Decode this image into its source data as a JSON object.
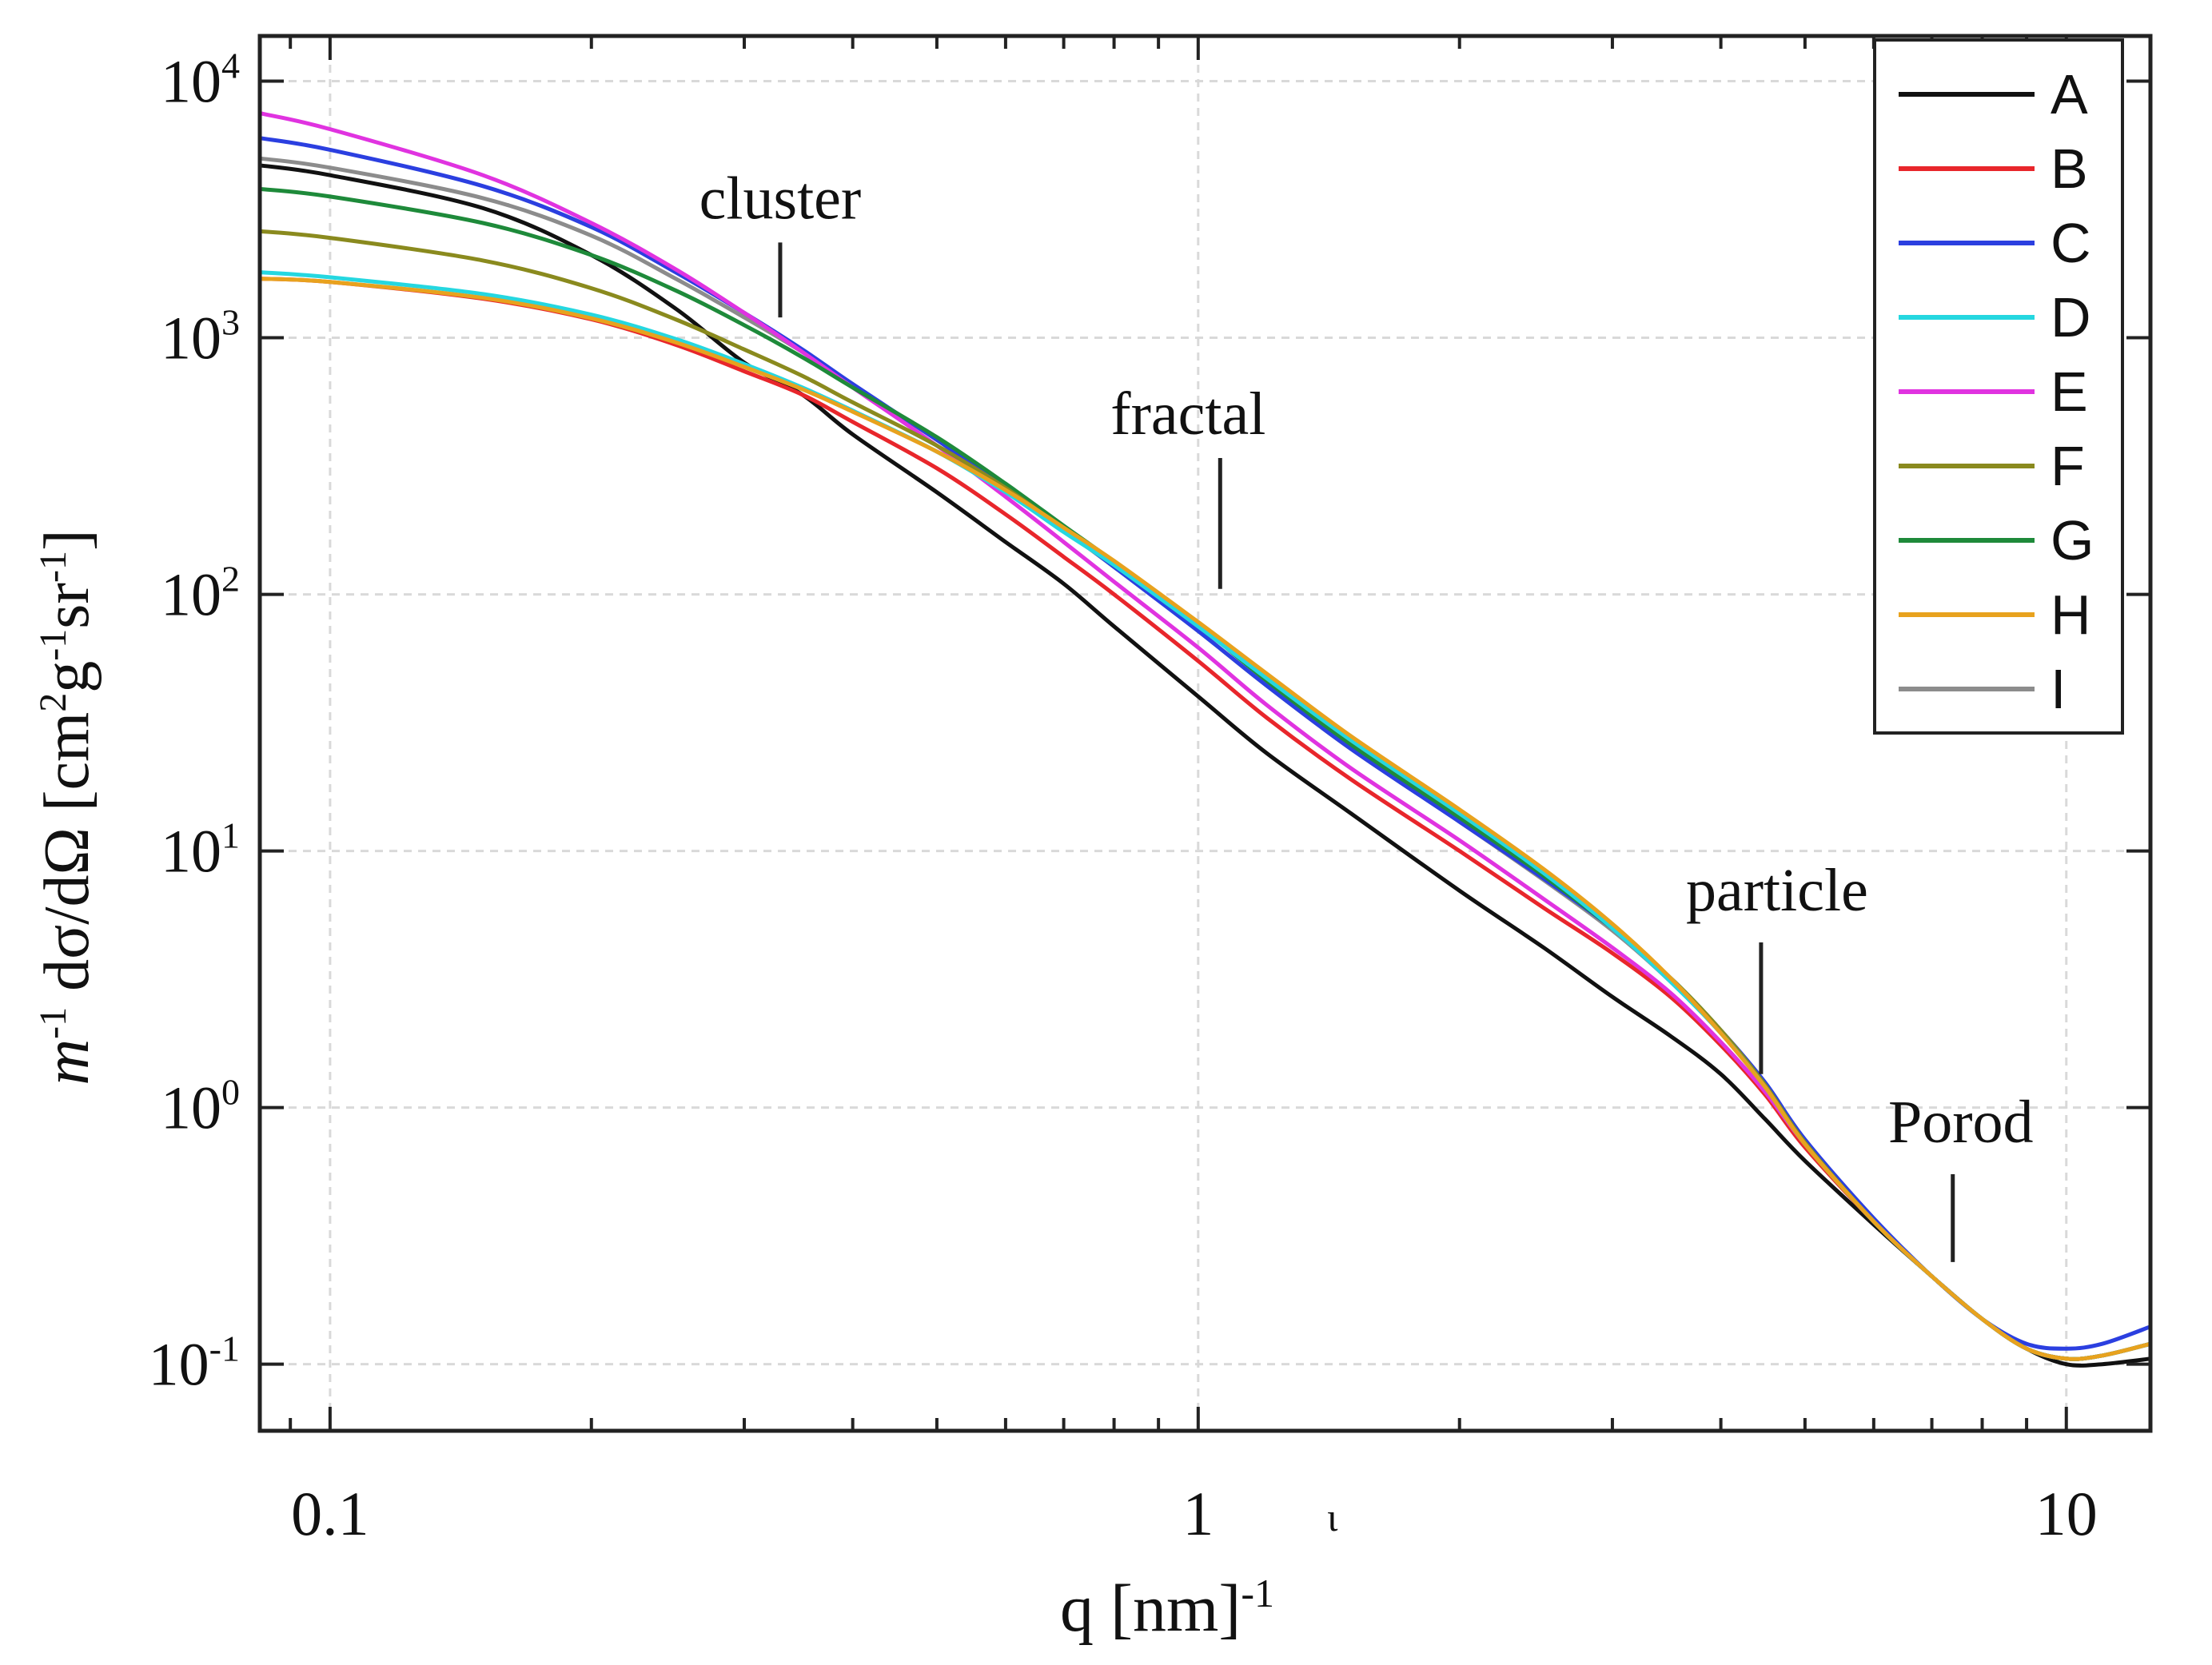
{
  "chart_data": {
    "type": "line",
    "title": "",
    "xlabel": "q [nm]",
    "xlabel_exp": "-1",
    "ylabel": {
      "m": "m",
      "m_exp": "-1",
      "body": " dσ/dΩ [cm",
      "cm_exp": "2",
      "g": "g",
      "g_exp": "-1",
      "sr": "sr",
      "sr_exp": "-1",
      "close": "]"
    },
    "xscale": "log",
    "yscale": "log",
    "xlim": [
      0.083,
      12.5
    ],
    "ylim": [
      0.055,
      15000
    ],
    "grid": true,
    "legend_position": "top-right",
    "x_ticks": [
      {
        "value": 0.1,
        "label": "0.1"
      },
      {
        "value": 1,
        "label": "1"
      },
      {
        "value": 10,
        "label": "10"
      }
    ],
    "y_ticks": [
      {
        "value": 0.1,
        "base": "10",
        "exp": "-1"
      },
      {
        "value": 1,
        "base": "10",
        "exp": "0"
      },
      {
        "value": 10,
        "base": "10",
        "exp": "1"
      },
      {
        "value": 100,
        "base": "10",
        "exp": "2"
      },
      {
        "value": 1000,
        "base": "10",
        "exp": "3"
      },
      {
        "value": 10000,
        "base": "10",
        "exp": "4"
      }
    ],
    "stray_mark": "ι",
    "annotations": [
      {
        "text": "cluster",
        "x": 0.33,
        "y_top": 1200,
        "y_bottom": 2350
      },
      {
        "text": "fractal",
        "x": 1.06,
        "y_top": 105,
        "y_bottom": 340
      },
      {
        "text": "particle",
        "x": 4.45,
        "y_top": 1.35,
        "y_bottom": 4.4
      },
      {
        "text": "Porod",
        "x": 7.4,
        "y_top": 0.25,
        "y_bottom": 0.55
      }
    ],
    "series": [
      {
        "name": "A",
        "color": "#111111",
        "x": [
          0.083,
          0.1,
          0.15,
          0.2,
          0.25,
          0.3,
          0.35,
          0.4,
          0.5,
          0.6,
          0.7,
          0.8,
          1.0,
          1.2,
          1.5,
          2.0,
          2.5,
          3.0,
          3.5,
          4.0,
          4.5,
          5.0,
          6.0,
          7.0,
          8.0,
          9.0,
          10.0,
          11.0,
          12.5
        ],
        "y": [
          4700,
          4300,
          3200,
          2100,
          1300,
          800,
          600,
          420,
          250,
          160,
          110,
          75,
          40,
          24,
          14,
          7,
          4.2,
          2.7,
          1.9,
          1.35,
          0.9,
          0.62,
          0.35,
          0.22,
          0.15,
          0.115,
          0.1,
          0.1,
          0.105
        ]
      },
      {
        "name": "B",
        "color": "#e8262b",
        "x": [
          0.083,
          0.1,
          0.15,
          0.2,
          0.25,
          0.3,
          0.35,
          0.4,
          0.5,
          0.6,
          0.7,
          0.8,
          1.0,
          1.2,
          1.5,
          2.0,
          2.5,
          3.0,
          3.5,
          4.0,
          4.5,
          5.0,
          6.0,
          7.0,
          8.0,
          9.0,
          10.0,
          11.0,
          12.5
        ],
        "y": [
          1700,
          1650,
          1420,
          1180,
          940,
          740,
          600,
          470,
          310,
          205,
          140,
          100,
          55,
          33,
          19,
          10,
          6.0,
          4.0,
          2.7,
          1.75,
          1.12,
          0.7,
          0.36,
          0.22,
          0.15,
          0.115,
          0.105,
          0.108,
          0.12
        ]
      },
      {
        "name": "C",
        "color": "#2b3fe0",
        "x": [
          0.083,
          0.1,
          0.15,
          0.2,
          0.25,
          0.3,
          0.35,
          0.4,
          0.5,
          0.6,
          0.7,
          0.8,
          1.0,
          1.2,
          1.5,
          2.0,
          2.5,
          3.0,
          3.5,
          4.0,
          4.5,
          5.0,
          6.0,
          7.0,
          8.0,
          9.0,
          10.0,
          11.0,
          12.5
        ],
        "y": [
          6000,
          5400,
          3900,
          2700,
          1800,
          1250,
          900,
          660,
          400,
          260,
          180,
          128,
          72,
          44,
          25,
          13,
          7.8,
          5.0,
          3.2,
          2.0,
          1.25,
          0.75,
          0.37,
          0.22,
          0.15,
          0.12,
          0.115,
          0.12,
          0.14
        ]
      },
      {
        "name": "D",
        "color": "#25d7e0",
        "x": [
          0.083,
          0.1,
          0.15,
          0.2,
          0.25,
          0.3,
          0.35,
          0.4,
          0.5,
          0.6,
          0.7,
          0.8,
          1.0,
          1.2,
          1.5,
          2.0,
          2.5,
          3.0,
          3.5,
          4.0,
          4.5,
          5.0,
          6.0,
          7.0,
          8.0,
          9.0,
          10.0,
          11.0,
          12.5
        ],
        "y": [
          1800,
          1720,
          1480,
          1230,
          990,
          790,
          640,
          520,
          360,
          250,
          175,
          130,
          75,
          47,
          27,
          14,
          8.2,
          5.0,
          3.1,
          1.95,
          1.2,
          0.72,
          0.36,
          0.22,
          0.15,
          0.115,
          0.105,
          0.108,
          0.12
        ]
      },
      {
        "name": "E",
        "color": "#e033e0",
        "x": [
          0.083,
          0.1,
          0.15,
          0.2,
          0.25,
          0.3,
          0.35,
          0.4,
          0.5,
          0.6,
          0.7,
          0.8,
          1.0,
          1.2,
          1.5,
          2.0,
          2.5,
          3.0,
          3.5,
          4.0,
          4.5,
          5.0,
          6.0,
          7.0,
          8.0,
          9.0,
          10.0,
          11.0,
          12.5
        ],
        "y": [
          7500,
          6500,
          4300,
          2800,
          1850,
          1250,
          880,
          640,
          380,
          240,
          160,
          112,
          62,
          37,
          21,
          11,
          6.5,
          4.2,
          2.8,
          1.8,
          1.15,
          0.72,
          0.36,
          0.22,
          0.15,
          0.115,
          0.105,
          0.108,
          0.12
        ]
      },
      {
        "name": "F",
        "color": "#8a8a1e",
        "x": [
          0.083,
          0.1,
          0.15,
          0.2,
          0.25,
          0.3,
          0.35,
          0.4,
          0.5,
          0.6,
          0.7,
          0.8,
          1.0,
          1.2,
          1.5,
          2.0,
          2.5,
          3.0,
          3.5,
          4.0,
          4.5,
          5.0,
          6.0,
          7.0,
          8.0,
          9.0,
          10.0,
          11.0,
          12.5
        ],
        "y": [
          2600,
          2450,
          2000,
          1560,
          1180,
          900,
          710,
          560,
          380,
          260,
          180,
          132,
          76,
          47,
          27,
          14,
          8.3,
          5.1,
          3.2,
          2.0,
          1.22,
          0.73,
          0.36,
          0.22,
          0.15,
          0.115,
          0.105,
          0.108,
          0.12
        ]
      },
      {
        "name": "G",
        "color": "#1e8a3a",
        "x": [
          0.083,
          0.1,
          0.15,
          0.2,
          0.25,
          0.3,
          0.35,
          0.4,
          0.5,
          0.6,
          0.7,
          0.8,
          1.0,
          1.2,
          1.5,
          2.0,
          2.5,
          3.0,
          3.5,
          4.0,
          4.5,
          5.0,
          6.0,
          7.0,
          8.0,
          9.0,
          10.0,
          11.0,
          12.5
        ],
        "y": [
          3800,
          3550,
          2800,
          2100,
          1530,
          1120,
          840,
          640,
          410,
          270,
          185,
          134,
          76,
          46,
          26,
          13.5,
          8.0,
          5.0,
          3.2,
          2.0,
          1.22,
          0.73,
          0.36,
          0.22,
          0.15,
          0.115,
          0.105,
          0.108,
          0.12
        ]
      },
      {
        "name": "H",
        "color": "#e8a21e",
        "x": [
          0.083,
          0.1,
          0.15,
          0.2,
          0.25,
          0.3,
          0.35,
          0.4,
          0.5,
          0.6,
          0.7,
          0.8,
          1.0,
          1.2,
          1.5,
          2.0,
          2.5,
          3.0,
          3.5,
          4.0,
          4.5,
          5.0,
          6.0,
          7.0,
          8.0,
          9.0,
          10.0,
          11.0,
          12.5
        ],
        "y": [
          1700,
          1650,
          1430,
          1190,
          960,
          770,
          630,
          515,
          360,
          255,
          182,
          135,
          78,
          49,
          28,
          14.5,
          8.5,
          5.2,
          3.2,
          1.95,
          1.2,
          0.72,
          0.36,
          0.22,
          0.15,
          0.115,
          0.105,
          0.108,
          0.12
        ]
      },
      {
        "name": "I",
        "color": "#8c8c8c",
        "x": [
          0.083,
          0.1,
          0.15,
          0.2,
          0.25,
          0.3,
          0.35,
          0.4,
          0.5,
          0.6,
          0.7,
          0.8,
          1.0,
          1.2,
          1.5,
          2.0,
          2.5,
          3.0,
          3.5,
          4.0,
          4.5,
          5.0,
          6.0,
          7.0,
          8.0,
          9.0,
          10.0,
          11.0,
          12.5
        ],
        "y": [
          5000,
          4600,
          3500,
          2500,
          1700,
          1200,
          880,
          650,
          400,
          260,
          178,
          128,
          72,
          44,
          25,
          13,
          7.7,
          4.9,
          3.1,
          1.95,
          1.2,
          0.72,
          0.36,
          0.22,
          0.15,
          0.115,
          0.105,
          0.108,
          0.12
        ]
      }
    ]
  }
}
